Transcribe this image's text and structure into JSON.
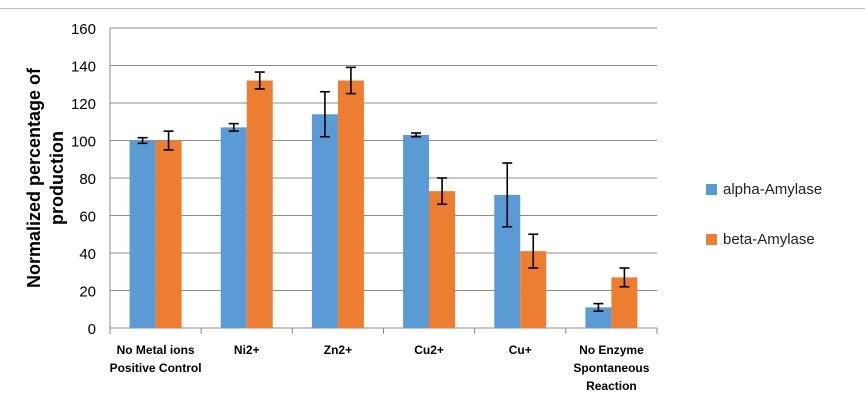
{
  "chart_data": {
    "type": "bar",
    "title": "",
    "ylabel": "Normalized percentage of production",
    "ylabel_lines": [
      "Normalized percentage of",
      "production"
    ],
    "xlabel": "",
    "ylim": [
      0,
      160
    ],
    "yticks": [
      "0",
      "20",
      "40",
      "60",
      "80",
      "100",
      "120",
      "140",
      "160"
    ],
    "grid": "horizontal",
    "legend_position": "right",
    "categories": [
      [
        "No Metal ions",
        "Positive Control"
      ],
      [
        "Ni2+"
      ],
      [
        "Zn2+"
      ],
      [
        "Cu2+"
      ],
      [
        "Cu+"
      ],
      [
        "No Enzyme",
        "Spontaneous",
        "Reaction"
      ]
    ],
    "series": [
      {
        "name": "alpha-Amylase",
        "color": "#5b9bd5",
        "values": [
          100,
          107,
          114,
          103,
          71,
          11
        ],
        "errors": [
          1.5,
          2,
          12,
          1,
          17,
          2
        ]
      },
      {
        "name": "beta-Amylase",
        "color": "#ed7d31",
        "values": [
          100,
          132,
          132,
          73,
          41,
          27
        ],
        "errors": [
          5,
          4.5,
          7,
          7,
          9,
          5
        ]
      }
    ]
  }
}
